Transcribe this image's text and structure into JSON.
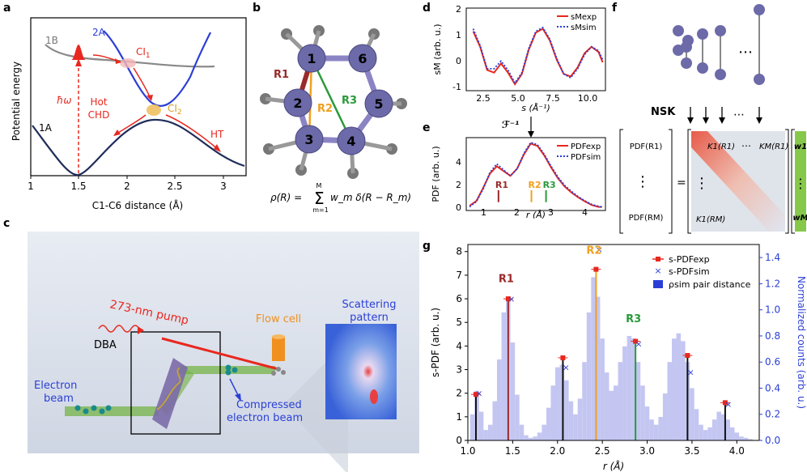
{
  "panel_labels": {
    "a": "a",
    "b": "b",
    "c": "c",
    "d": "d",
    "e": "e",
    "f": "f",
    "g": "g"
  },
  "panel_a": {
    "ylabel": "Potential energy",
    "xlabel": "C1-C6 distance (Å)",
    "xticks": [
      "1",
      "1.5",
      "2",
      "2.5",
      "3"
    ],
    "labels": {
      "s1B": "1B",
      "s2A": "2A",
      "s1A": "1A",
      "ci1": "CI",
      "ci1_sub": "1",
      "ci2": "CI",
      "ci2_sub": "2",
      "hbar": "ħω",
      "hot": "Hot",
      "chd": "CHD",
      "ht": "HT"
    }
  },
  "panel_b": {
    "atoms": [
      "1",
      "2",
      "3",
      "4",
      "5",
      "6"
    ],
    "distances": [
      "R1",
      "R2",
      "R3"
    ],
    "formula_lhs": "ρ(R) = ",
    "formula_sum_top": "M",
    "formula_sum_bottom": "m=1",
    "formula_rhs": "w_m δ(R − R_m)"
  },
  "panel_c": {
    "pump": "273-nm pump",
    "flow": "Flow cell",
    "scatter1": "Scattering",
    "scatter2": "pattern",
    "dba": "DBA",
    "ebeam1": "Electron",
    "ebeam2": "beam",
    "comp1": "Compressed",
    "comp2": "electron beam"
  },
  "panel_d": {
    "ylabel": "sM (arb. u.)",
    "xlabel": "s (Å⁻¹)",
    "xticks": [
      "2.5",
      "5.0",
      "7.5",
      "10.0"
    ],
    "yticks": [
      "2",
      "1",
      "0",
      "-1"
    ],
    "legend": [
      "sMexp",
      "sMsim"
    ]
  },
  "panel_e": {
    "ylabel": "PDF (arb. u.)",
    "xlabel": "r (Å)",
    "xticks": [
      "1",
      "2",
      "3",
      "4"
    ],
    "yticks": [
      "0",
      "2",
      "4"
    ],
    "legend": [
      "PDFexp",
      "PDFsim"
    ],
    "marks": [
      "R1",
      "R2",
      "R3"
    ],
    "transform": "ℱ⁻¹"
  },
  "panel_f": {
    "nsk": "NSK",
    "pdf_top": "PDF(R1)",
    "pdf_bottom": "PDF(RM)",
    "k_top": "K1(R1)",
    "k_top_right": "KM(R1)",
    "k_bottom": "K1(RM)",
    "w_top": "w1",
    "w_bottom": "wM",
    "dots": "⋯",
    "vdots": "⋮",
    "eq": "="
  },
  "panel_g": {
    "ylabel": "s-PDF (arb. u.)",
    "y2label": "Normalized counts (arb. u.)",
    "xlabel": "r (Å)",
    "xticks": [
      "1.0",
      "1.5",
      "2.0",
      "2.5",
      "3.0",
      "3.5",
      "4.0"
    ],
    "yticks": [
      "0",
      "1",
      "2",
      "3",
      "4",
      "5",
      "6",
      "7",
      "8"
    ],
    "y2ticks": [
      "0.0",
      "0.2",
      "0.4",
      "0.6",
      "0.8",
      "1.0",
      "1.2",
      "1.4"
    ],
    "legend": [
      "s-PDFexp",
      "s-PDFsim",
      "ρsim pair distance"
    ],
    "rlabels": [
      "R1",
      "R2",
      "R3"
    ]
  },
  "colors": {
    "navy": "#1f2d5a",
    "red": "#e8281e",
    "blue": "#2b3fd6",
    "purple": "#8b84c4",
    "orange": "#f0a020",
    "green": "#2a9a3a",
    "maroon": "#9a2a2a"
  },
  "chart_data": [
    {
      "type": "line",
      "panel": "d",
      "xlabel": "s (Å⁻¹)",
      "ylabel": "sM (arb. u.)",
      "xlim": [
        0.5,
        10.5
      ],
      "ylim": [
        -1.2,
        2.0
      ],
      "x": [
        1.0,
        1.5,
        2.0,
        2.5,
        3.0,
        3.5,
        4.0,
        4.5,
        5.0,
        5.5,
        6.0,
        6.5,
        7.0,
        7.5,
        8.0,
        8.5,
        9.0,
        9.5,
        10.0,
        10.3
      ],
      "series": [
        {
          "name": "sMexp",
          "values": [
            1.1,
            0.5,
            -0.4,
            -0.5,
            -0.15,
            -0.5,
            -0.95,
            -0.55,
            0.4,
            1.05,
            1.2,
            0.75,
            0.0,
            -0.55,
            -0.65,
            -0.3,
            0.25,
            0.5,
            0.3,
            -0.1
          ]
        },
        {
          "name": "sMsim",
          "values": [
            1.2,
            0.55,
            -0.35,
            -0.35,
            -0.05,
            -0.4,
            -0.9,
            -0.5,
            0.45,
            1.1,
            1.25,
            0.8,
            0.05,
            -0.55,
            -0.7,
            -0.35,
            0.2,
            0.5,
            0.35,
            0.0
          ]
        }
      ]
    },
    {
      "type": "line",
      "panel": "e",
      "xlabel": "r (Å)",
      "ylabel": "PDF (arb. u.)",
      "xlim": [
        0.5,
        4.6
      ],
      "ylim": [
        -0.3,
        5.8
      ],
      "x": [
        0.6,
        0.8,
        1.0,
        1.2,
        1.4,
        1.6,
        1.8,
        2.0,
        2.2,
        2.4,
        2.6,
        2.8,
        3.0,
        3.2,
        3.4,
        3.6,
        3.8,
        4.0,
        4.2,
        4.4,
        4.5
      ],
      "series": [
        {
          "name": "PDFexp",
          "values": [
            0.1,
            0.5,
            1.6,
            2.8,
            3.4,
            3.0,
            2.6,
            3.2,
            4.4,
            5.3,
            5.1,
            4.3,
            3.3,
            2.4,
            1.7,
            1.2,
            0.8,
            0.45,
            0.15,
            0.0,
            0.0
          ]
        },
        {
          "name": "PDFsim",
          "values": [
            0.0,
            0.45,
            1.5,
            2.9,
            3.6,
            3.1,
            2.6,
            3.2,
            4.5,
            5.4,
            5.2,
            4.4,
            3.4,
            2.5,
            1.8,
            1.3,
            0.85,
            0.5,
            0.2,
            0.05,
            0.0
          ]
        }
      ],
      "markers": {
        "R1": 1.45,
        "R2": 2.42,
        "R3": 2.85
      }
    },
    {
      "type": "bar",
      "panel": "g",
      "xlabel": "r (Å)",
      "ylabel": "s-PDF (arb. u.)",
      "y2label": "Normalized counts (arb. u.)",
      "xlim": [
        1.0,
        4.25
      ],
      "ylim": [
        0,
        8.3
      ],
      "y2lim": [
        0,
        1.5
      ],
      "hist_x": [
        1.05,
        1.1,
        1.15,
        1.2,
        1.25,
        1.3,
        1.35,
        1.4,
        1.45,
        1.5,
        1.55,
        1.6,
        1.65,
        1.7,
        1.75,
        1.8,
        1.85,
        1.9,
        1.95,
        2.0,
        2.05,
        2.1,
        2.15,
        2.2,
        2.25,
        2.3,
        2.35,
        2.4,
        2.45,
        2.5,
        2.55,
        2.6,
        2.65,
        2.7,
        2.75,
        2.8,
        2.85,
        2.9,
        2.95,
        3.0,
        3.05,
        3.1,
        3.15,
        3.2,
        3.25,
        3.3,
        3.35,
        3.4,
        3.45,
        3.5,
        3.55,
        3.6,
        3.65,
        3.7,
        3.75,
        3.8,
        3.85,
        3.9,
        3.95,
        4.0,
        4.05,
        4.1,
        4.15,
        4.2
      ],
      "hist_counts": [
        0.2,
        0.38,
        0.22,
        0.08,
        0.12,
        0.3,
        0.62,
        0.98,
        1.1,
        0.75,
        0.35,
        0.12,
        0.04,
        0.02,
        0.03,
        0.06,
        0.12,
        0.25,
        0.42,
        0.56,
        0.58,
        0.46,
        0.3,
        0.2,
        0.32,
        0.6,
        0.98,
        1.25,
        1.1,
        0.78,
        0.52,
        0.38,
        0.42,
        0.6,
        0.72,
        0.8,
        0.78,
        0.6,
        0.42,
        0.26,
        0.16,
        0.12,
        0.18,
        0.36,
        0.6,
        0.78,
        0.82,
        0.76,
        0.6,
        0.4,
        0.24,
        0.12,
        0.08,
        0.1,
        0.16,
        0.22,
        0.2,
        0.16,
        0.1,
        0.06,
        0.03,
        0.02,
        0.01,
        0.0
      ],
      "peaks_x": [
        1.09,
        1.45,
        2.06,
        2.43,
        2.87,
        3.45,
        3.87
      ],
      "exp": [
        1.95,
        6.0,
        3.5,
        7.25,
        4.2,
        3.6,
        1.6
      ],
      "sim": [
        2.0,
        6.0,
        3.1,
        8.1,
        4.1,
        2.9,
        1.55
      ],
      "peak_colors": [
        "#111111",
        "#9a2a2a",
        "#111111",
        "#f0a020",
        "#2a9a3a",
        "#111111",
        "#111111"
      ],
      "rlabels": {
        "R1": 1.45,
        "R2": 2.43,
        "R3": 2.87
      }
    }
  ]
}
